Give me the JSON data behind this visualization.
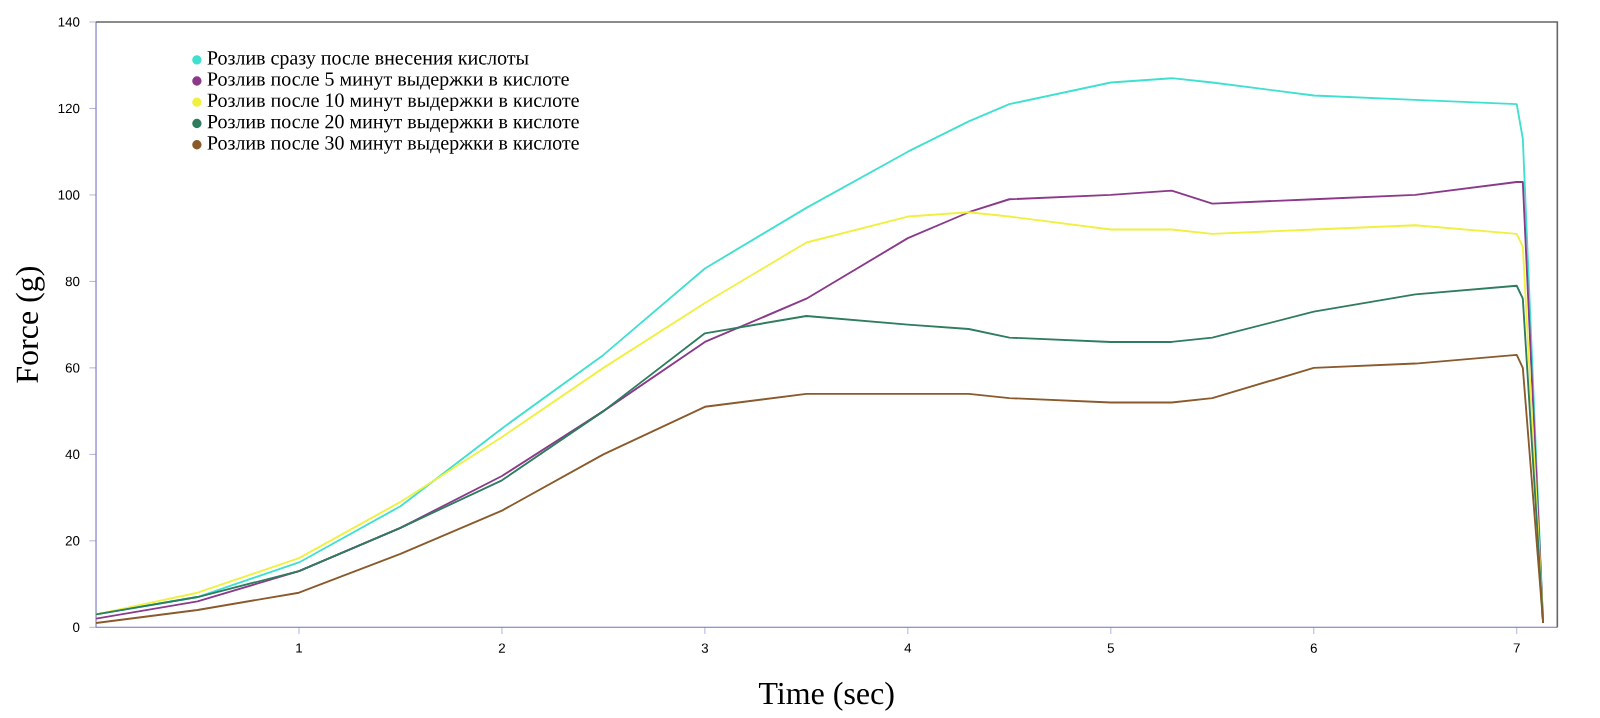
{
  "chart_data": {
    "type": "line",
    "xlabel": "Time (sec)",
    "ylabel": "Force (g)",
    "xlim": [
      0,
      7.2
    ],
    "ylim": [
      0,
      140
    ],
    "xticks": [
      1,
      2,
      3,
      4,
      5,
      6,
      7
    ],
    "yticks": [
      0,
      20,
      40,
      60,
      80,
      100,
      120,
      140
    ],
    "x": [
      0,
      0.5,
      1,
      1.5,
      2,
      2.5,
      3,
      3.5,
      4,
      4.3,
      4.5,
      5,
      5.3,
      5.5,
      6,
      6.5,
      7,
      7.03,
      7.13
    ],
    "series": [
      {
        "name": "Розлив сразу после внесения кислоты",
        "color": "#40e0d0",
        "values": [
          3,
          7,
          15,
          28,
          46,
          63,
          83,
          97,
          110,
          117,
          121,
          126,
          127,
          126,
          123,
          122,
          121,
          113,
          1
        ]
      },
      {
        "name": "Розлив после 5 минут выдержки в кислоте",
        "color": "#8b3a8b",
        "values": [
          2,
          6,
          13,
          23,
          35,
          50,
          66,
          76,
          90,
          96,
          99,
          100,
          101,
          98,
          99,
          100,
          103,
          103,
          1
        ]
      },
      {
        "name": "Розлив после 10 минут выдержки в кислоте",
        "color": "#f0f040",
        "values": [
          3,
          8,
          16,
          29,
          44,
          60,
          75,
          89,
          95,
          96,
          95,
          92,
          92,
          91,
          92,
          93,
          91,
          88,
          1
        ]
      },
      {
        "name": "Розлив после 20 минут выдержки в кислоте",
        "color": "#2e7d5e",
        "values": [
          3,
          7,
          13,
          23,
          34,
          50,
          68,
          72,
          70,
          69,
          67,
          66,
          66,
          67,
          73,
          77,
          79,
          76,
          1
        ]
      },
      {
        "name": "Розлив после 30 минут выдержки в кислоте",
        "color": "#8b5a2b",
        "values": [
          1,
          4,
          8,
          17,
          27,
          40,
          51,
          54,
          54,
          54,
          53,
          52,
          52,
          53,
          60,
          61,
          63,
          60,
          1
        ]
      }
    ],
    "legend": "top left",
    "grid": false,
    "marker": "none",
    "line_style": "solid"
  }
}
